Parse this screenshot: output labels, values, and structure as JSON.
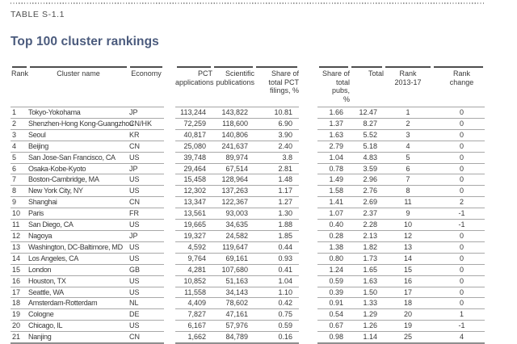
{
  "page": {
    "table_label": "TABLE S-1.1",
    "title": "Top 100 cluster rankings"
  },
  "table": {
    "columns": [
      "Rank",
      "Cluster name",
      "Economy",
      "PCT\napplications",
      "Scientific\npublications",
      "Share of\ntotal PCT\nfilings, %",
      "Share of\ntotal pubs,\n%",
      "Total",
      "Rank\n2013-17",
      "Rank\nchange"
    ],
    "rows": [
      [
        "1",
        "Tokyo-Yokohama",
        "JP",
        "113,244",
        "143,822",
        "10.81",
        "1.66",
        "12.47",
        "1",
        "0"
      ],
      [
        "2",
        "Shenzhen-Hong Kong-Guangzhou",
        "CN/HK",
        "72,259",
        "118,600",
        "6.90",
        "1.37",
        "8.27",
        "2",
        "0"
      ],
      [
        "3",
        "Seoul",
        "KR",
        "40,817",
        "140,806",
        "3.90",
        "1.63",
        "5.52",
        "3",
        "0"
      ],
      [
        "4",
        "Beijing",
        "CN",
        "25,080",
        "241,637",
        "2.40",
        "2.79",
        "5.18",
        "4",
        "0"
      ],
      [
        "5",
        "San Jose-San Francisco, CA",
        "US",
        "39,748",
        "89,974",
        "3.8",
        "1.04",
        "4.83",
        "5",
        "0"
      ],
      [
        "6",
        "Osaka-Kobe-Kyoto",
        "JP",
        "29,464",
        "67,514",
        "2.81",
        "0.78",
        "3.59",
        "6",
        "0"
      ],
      [
        "7",
        "Boston-Cambridge, MA",
        "US",
        "15,458",
        "128,964",
        "1.48",
        "1.49",
        "2.96",
        "7",
        "0"
      ],
      [
        "8",
        "New York City, NY",
        "US",
        "12,302",
        "137,263",
        "1.17",
        "1.58",
        "2.76",
        "8",
        "0"
      ],
      [
        "9",
        "Shanghai",
        "CN",
        "13,347",
        "122,367",
        "1.27",
        "1.41",
        "2.69",
        "11",
        "2"
      ],
      [
        "10",
        "Paris",
        "FR",
        "13,561",
        "93,003",
        "1.30",
        "1.07",
        "2.37",
        "9",
        "-1"
      ],
      [
        "11",
        "San Diego, CA",
        "US",
        "19,665",
        "34,635",
        "1.88",
        "0.40",
        "2.28",
        "10",
        "-1"
      ],
      [
        "12",
        "Nagoya",
        "JP",
        "19,327",
        "24,582",
        "1.85",
        "0.28",
        "2.13",
        "12",
        "0"
      ],
      [
        "13",
        "Washington, DC-Baltimore, MD",
        "US",
        "4,592",
        "119,647",
        "0.44",
        "1.38",
        "1.82",
        "13",
        "0"
      ],
      [
        "14",
        "Los Angeles, CA",
        "US",
        "9,764",
        "69,161",
        "0.93",
        "0.80",
        "1.73",
        "14",
        "0"
      ],
      [
        "15",
        "London",
        "GB",
        "4,281",
        "107,680",
        "0.41",
        "1.24",
        "1.65",
        "15",
        "0"
      ],
      [
        "16",
        "Houston, TX",
        "US",
        "10,852",
        "51,163",
        "1.04",
        "0.59",
        "1.63",
        "16",
        "0"
      ],
      [
        "17",
        "Seattle, WA",
        "US",
        "11,558",
        "34,143",
        "1.10",
        "0.39",
        "1.50",
        "17",
        "0"
      ],
      [
        "18",
        "Amsterdam-Rotterdam",
        "NL",
        "4,409",
        "78,602",
        "0.42",
        "0.91",
        "1.33",
        "18",
        "0"
      ],
      [
        "19",
        "Cologne",
        "DE",
        "7,827",
        "47,161",
        "0.75",
        "0.54",
        "1.29",
        "20",
        "1"
      ],
      [
        "20",
        "Chicago, IL",
        "US",
        "6,167",
        "57,976",
        "0.59",
        "0.67",
        "1.26",
        "19",
        "-1"
      ],
      [
        "21",
        "Nanjing",
        "CN",
        "1,662",
        "84,789",
        "0.16",
        "0.98",
        "1.14",
        "25",
        "4"
      ]
    ]
  },
  "colors": {
    "title": "#4b5b7d",
    "label": "#4f4f4f",
    "header_rule": "#4e4e4e",
    "row_rule": "#a8a8a8"
  }
}
